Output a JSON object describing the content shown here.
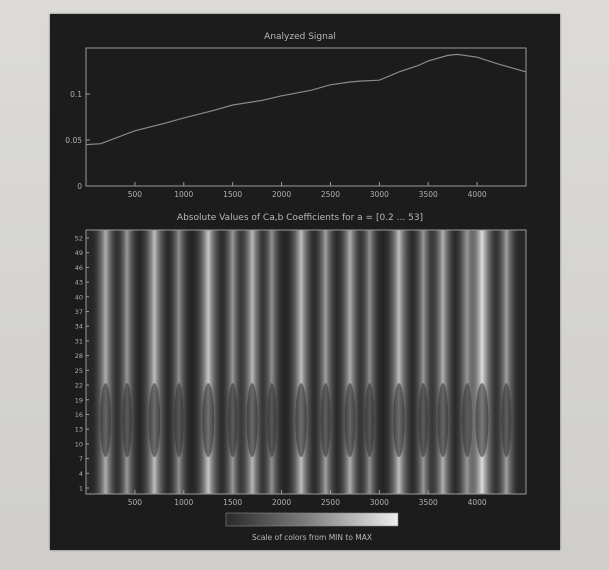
{
  "chart_data": [
    {
      "type": "line",
      "title": "Analyzed Signal",
      "xlabel": "",
      "ylabel": "",
      "xlim": [
        0,
        4500
      ],
      "ylim": [
        0,
        0.15
      ],
      "x_ticks": [
        "500",
        "1000",
        "1500",
        "2000",
        "2500",
        "3000",
        "3500",
        "4000"
      ],
      "y_ticks": [
        "0",
        "0.05",
        "0.1"
      ],
      "series": [
        {
          "x": [
            0,
            150,
            300,
            500,
            800,
            1000,
            1300,
            1500,
            1800,
            2000,
            2300,
            2500,
            2700,
            2800,
            3000,
            3200,
            3400,
            3500,
            3700,
            3800,
            4000,
            4200,
            4500
          ],
          "y": [
            0.045,
            0.046,
            0.052,
            0.06,
            0.068,
            0.074,
            0.082,
            0.088,
            0.093,
            0.098,
            0.104,
            0.11,
            0.113,
            0.114,
            0.115,
            0.124,
            0.131,
            0.136,
            0.142,
            0.143,
            0.14,
            0.133,
            0.124
          ]
        }
      ],
      "grid": false,
      "colors": {
        "background": "#1c1c1c",
        "line": "#8a8a8a",
        "axis": "#9a9a9a",
        "text": "#b8b8b8"
      }
    },
    {
      "type": "heatmap",
      "title": "Absolute Values of Ca,b Coefficients for a = [0.2 ... 53]",
      "xlabel": "",
      "ylabel": "",
      "xlim": [
        0,
        4500
      ],
      "x_ticks": [
        "500",
        "1000",
        "1500",
        "2000",
        "2500",
        "3000",
        "3500",
        "4000"
      ],
      "y_ticks": [
        "1",
        "4",
        "7",
        "10",
        "13",
        "16",
        "19",
        "22",
        "25",
        "28",
        "31",
        "34",
        "37",
        "40",
        "43",
        "46",
        "49",
        "52"
      ],
      "colorbar_label": "Scale of colors from MIN to MAX",
      "column_peaks_x": [
        200,
        420,
        700,
        950,
        1250,
        1500,
        1700,
        1900,
        2200,
        2450,
        2700,
        2900,
        3200,
        3450,
        3650,
        3900,
        4050,
        4300
      ],
      "column_peaks_strength": [
        0.7,
        0.55,
        0.8,
        0.5,
        0.85,
        0.55,
        0.75,
        0.5,
        0.8,
        0.6,
        0.7,
        0.5,
        0.8,
        0.55,
        0.7,
        0.65,
        1.0,
        0.6
      ],
      "colors": {
        "min": "#262626",
        "max": "#e8e8e8"
      }
    }
  ]
}
